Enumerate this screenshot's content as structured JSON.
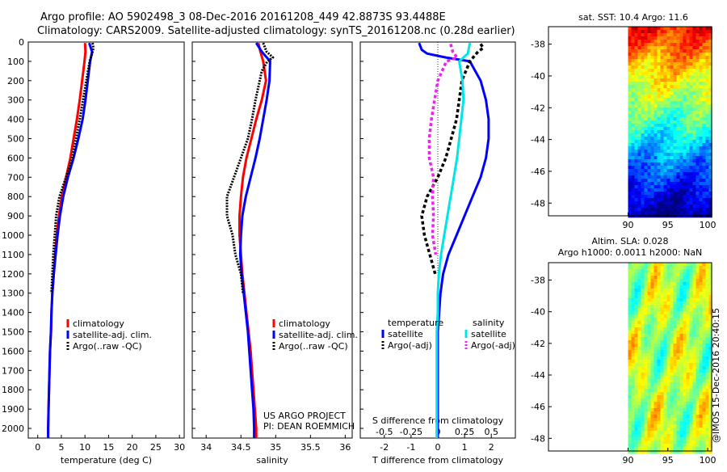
{
  "header": {
    "line1": "Argo profile: AO 5902498_3 08-Dec-2016 20161208_449 42.8873S 93.4488E",
    "line2": "Climatology: CARS2009. Satellite-adjusted climatology: synTS_20161208.nc (0.28d earlier)"
  },
  "credit": "@IMOS 15-Dec-2016 20:40:15",
  "project": {
    "line1": "US ARGO PROJECT",
    "line2": "PI: DEAN ROEMMICH"
  },
  "colors": {
    "clim": "#ff0000",
    "sat": "#0000ff",
    "argo": "#000000",
    "sat_s": "#00e5e5",
    "argo_s": "#ee22ee"
  },
  "chart_data": [
    {
      "type": "line",
      "xlabel": "temperature (deg C)",
      "xlim": [
        -2,
        31
      ],
      "ylim": [
        2050,
        0
      ],
      "xticks": [
        0,
        5,
        10,
        15,
        20,
        25,
        30
      ],
      "yticks": [
        0,
        100,
        200,
        300,
        400,
        500,
        600,
        700,
        800,
        900,
        1000,
        1100,
        1200,
        1300,
        1400,
        1500,
        1600,
        1700,
        1800,
        1900,
        2000
      ],
      "legend": [
        "climatology",
        "satellite-adj. clim.",
        "Argo(..raw -QC)"
      ],
      "series": [
        {
          "name": "climatology",
          "depth": [
            5,
            50,
            100,
            200,
            300,
            400,
            500,
            600,
            700,
            800,
            900,
            1000,
            1100,
            1200,
            1300,
            1400,
            1500,
            1600,
            1700,
            1800,
            1900,
            2000,
            2050
          ],
          "values": [
            10.0,
            10.1,
            9.9,
            9.4,
            8.9,
            8.3,
            7.6,
            6.9,
            6.0,
            5.1,
            4.5,
            4.0,
            3.7,
            3.4,
            3.1,
            2.9,
            2.8,
            2.6,
            2.5,
            2.4,
            2.3,
            2.2,
            2.2
          ]
        },
        {
          "name": "satellite-adj. clim.",
          "depth": [
            5,
            50,
            100,
            200,
            300,
            400,
            500,
            600,
            700,
            800,
            900,
            1000,
            1100,
            1200,
            1300,
            1400,
            1500,
            1600,
            1700,
            1800,
            1900,
            2000,
            2050
          ],
          "values": [
            10.9,
            11.5,
            11.1,
            10.6,
            10.1,
            9.5,
            8.6,
            7.6,
            6.4,
            5.4,
            4.7,
            4.2,
            3.8,
            3.4,
            3.1,
            2.9,
            2.8,
            2.6,
            2.5,
            2.4,
            2.3,
            2.2,
            2.2
          ]
        },
        {
          "name": "Argo(..raw -QC)",
          "depth": [
            5,
            30,
            60,
            100,
            200,
            300,
            400,
            500,
            600,
            700,
            800,
            900,
            1000,
            1100,
            1200,
            1300
          ],
          "values": [
            11.6,
            11.8,
            11.5,
            11.0,
            10.3,
            9.6,
            8.9,
            8.1,
            7.3,
            6.0,
            4.6,
            3.9,
            3.6,
            3.3,
            3.1,
            2.9
          ]
        }
      ]
    },
    {
      "type": "line",
      "xlabel": "salinity",
      "xlim": [
        33.8,
        36.1
      ],
      "ylim": [
        2050,
        0
      ],
      "xticks": [
        34,
        34.5,
        35,
        35.5,
        36
      ],
      "legend": [
        "climatology",
        "satellite-adj. clim.",
        "Argo(..raw -QC)"
      ],
      "series": [
        {
          "name": "climatology",
          "depth": [
            5,
            50,
            100,
            200,
            300,
            400,
            500,
            600,
            700,
            800,
            900,
            1000,
            1100,
            1200,
            1300,
            1400,
            1500,
            1600,
            1700,
            1800,
            1900,
            2000,
            2050
          ],
          "values": [
            34.75,
            34.78,
            34.82,
            34.86,
            34.8,
            34.72,
            34.65,
            34.58,
            34.53,
            34.5,
            34.48,
            34.48,
            34.5,
            34.52,
            34.55,
            34.58,
            34.61,
            34.64,
            34.66,
            34.68,
            34.7,
            34.72,
            34.72
          ]
        },
        {
          "name": "satellite-adj. clim.",
          "depth": [
            5,
            50,
            100,
            200,
            300,
            400,
            500,
            600,
            700,
            800,
            900,
            1000,
            1100,
            1200,
            1300,
            1400,
            1500,
            1600,
            1700,
            1800,
            1900,
            2000,
            2050
          ],
          "values": [
            34.72,
            34.8,
            34.92,
            34.91,
            34.87,
            34.82,
            34.77,
            34.71,
            34.64,
            34.57,
            34.52,
            34.5,
            34.49,
            34.51,
            34.54,
            34.57,
            34.6,
            34.62,
            34.64,
            34.66,
            34.68,
            34.69,
            34.69
          ]
        },
        {
          "name": "Argo(..raw -QC)",
          "depth": [
            5,
            50,
            80,
            100,
            150,
            200,
            300,
            400,
            500,
            600,
            700,
            800,
            900,
            1000,
            1100,
            1200,
            1300
          ],
          "values": [
            34.82,
            34.87,
            34.96,
            34.88,
            34.8,
            34.77,
            34.71,
            34.66,
            34.6,
            34.5,
            34.4,
            34.3,
            34.3,
            34.38,
            34.42,
            34.5,
            34.53
          ]
        }
      ]
    },
    {
      "type": "line",
      "xlabel": "T difference from climatology",
      "x2label": "S difference from climatology",
      "xlim": [
        -2.9,
        2.9
      ],
      "ylim": [
        2050,
        0
      ],
      "xticks": [
        -2,
        -1,
        0,
        1,
        2
      ],
      "x2ticks": [
        -0.5,
        -0.25,
        0,
        0.25,
        0.5
      ],
      "legend_temperature_title": "temperature",
      "legend_salinity_title": "salinity",
      "legend": [
        "satellite",
        "Argo(-adj)",
        "satellite",
        "Argo(-adj)"
      ],
      "series": [
        {
          "name": "satellite",
          "group": "temperature",
          "depth": [
            5,
            40,
            60,
            80,
            100,
            200,
            300,
            400,
            500,
            600,
            700,
            800,
            900,
            1000,
            1100,
            1200,
            1300,
            1400,
            1500,
            1600,
            1700,
            1800,
            1900,
            2000,
            2050
          ],
          "values": [
            -0.7,
            -0.6,
            -0.4,
            0.3,
            1.2,
            1.6,
            1.8,
            1.9,
            1.9,
            1.8,
            1.6,
            1.3,
            1.0,
            0.7,
            0.4,
            0.2,
            0.1,
            0.05,
            0.0,
            0.0,
            0.0,
            0.0,
            0.0,
            0.0,
            0.0
          ]
        },
        {
          "name": "Argo(-adj)",
          "group": "temperature",
          "depth": [
            10,
            30,
            50,
            100,
            200,
            300,
            400,
            500,
            600,
            700,
            800,
            900,
            1000,
            1100,
            1200
          ],
          "values": [
            1.6,
            1.7,
            1.5,
            1.2,
            0.9,
            0.8,
            0.7,
            0.5,
            0.3,
            0.0,
            -0.4,
            -0.6,
            -0.5,
            -0.3,
            -0.1
          ]
        },
        {
          "name": "satellite",
          "group": "salinity",
          "depth": [
            5,
            60,
            100,
            200,
            300,
            400,
            500,
            600,
            700,
            800,
            900,
            1000,
            1100,
            1200,
            1300,
            1400,
            1500,
            1600,
            1700,
            1800,
            1900,
            2000,
            2050
          ],
          "values": [
            0.3,
            0.28,
            0.2,
            0.23,
            0.24,
            0.22,
            0.2,
            0.18,
            0.15,
            0.12,
            0.09,
            0.06,
            0.03,
            0.01,
            0.0,
            0.0,
            -0.01,
            -0.01,
            -0.01,
            -0.01,
            -0.01,
            -0.01,
            -0.01
          ]
        },
        {
          "name": "Argo(-adj)",
          "group": "salinity",
          "depth": [
            10,
            50,
            80,
            100,
            200,
            300,
            400,
            500,
            600,
            700,
            800,
            900,
            1000,
            1100
          ],
          "values": [
            0.12,
            0.14,
            0.18,
            0.08,
            0.0,
            -0.03,
            -0.06,
            -0.08,
            -0.08,
            -0.04,
            -0.05,
            -0.04,
            -0.05,
            -0.02
          ]
        }
      ]
    },
    {
      "type": "heatmap",
      "title": "sat. SST: 10.4 Argo: 11.6",
      "xlim": [
        80,
        100.5
      ],
      "ylim": [
        -48.8,
        -36.9
      ],
      "xticks": [
        90,
        95,
        100
      ],
      "yticks": [
        -38,
        -40,
        -42,
        -44,
        -46,
        -48
      ],
      "data_xlim": [
        90,
        100.5
      ]
    },
    {
      "type": "heatmap",
      "title_line1": "Altim. SLA: 0.028",
      "title_line2": "Argo h1000: 0.0011 h2000: NaN",
      "xlim": [
        80,
        100.5
      ],
      "ylim": [
        -48.8,
        -36.9
      ],
      "xticks": [
        90,
        95,
        100
      ],
      "yticks": [
        -38,
        -40,
        -42,
        -44,
        -46,
        -48
      ],
      "data_xlim": [
        90,
        100.5
      ]
    }
  ]
}
